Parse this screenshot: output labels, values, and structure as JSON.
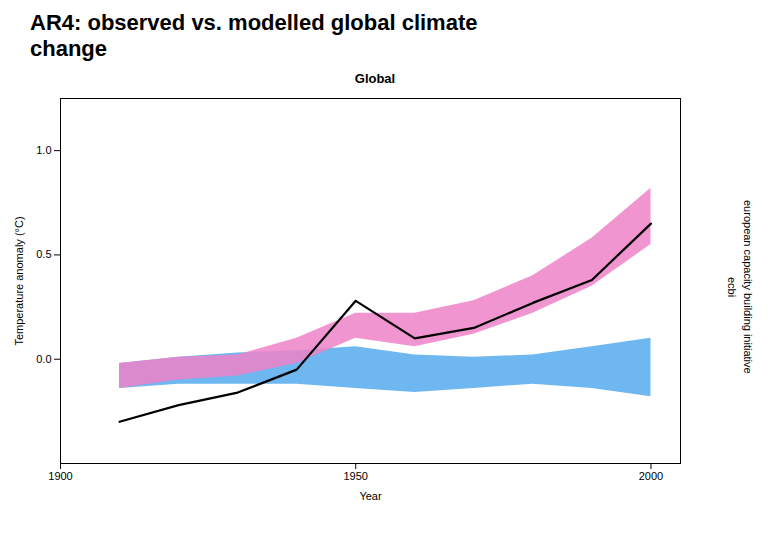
{
  "title": [
    "AR4: observed vs. modelled global climate",
    "change"
  ],
  "annotations": [
    "ecbi",
    "european capacity building initiative"
  ],
  "chart_data": {
    "type": "area",
    "title": "Global",
    "xlabel": "Year",
    "ylabel": "Temperature anomaly (°C)",
    "x": [
      1910,
      1920,
      1930,
      1940,
      1950,
      1960,
      1970,
      1980,
      1990,
      2000
    ],
    "series": [
      {
        "type": "area",
        "color": "#55aaee",
        "lower": [
          -0.14,
          -0.12,
          -0.12,
          -0.12,
          -0.14,
          -0.16,
          -0.14,
          -0.12,
          -0.14,
          -0.18
        ],
        "upper": [
          -0.02,
          0.01,
          0.03,
          0.04,
          0.06,
          0.02,
          0.01,
          0.02,
          0.06,
          0.1
        ]
      },
      {
        "type": "area",
        "color": "#ee82c8",
        "lower": [
          -0.14,
          -0.1,
          -0.08,
          -0.02,
          0.1,
          0.06,
          0.12,
          0.22,
          0.35,
          0.55
        ],
        "upper": [
          -0.02,
          0.01,
          0.02,
          0.1,
          0.22,
          0.22,
          0.28,
          0.4,
          0.58,
          0.82
        ]
      },
      {
        "type": "line",
        "color": "#000000",
        "values": [
          -0.3,
          -0.22,
          -0.16,
          -0.05,
          0.28,
          0.1,
          0.15,
          0.27,
          0.38,
          0.65
        ]
      }
    ],
    "xlim": [
      1900,
      2005
    ],
    "xticks": [
      1900,
      1950,
      2000
    ],
    "ylim": [
      -0.5,
      1.25
    ],
    "yticks": [
      {
        "value": 0.0,
        "label": "0.0"
      },
      0.5,
      {
        "value": 1.0,
        "label": "1.0"
      }
    ],
    "grid": false
  }
}
